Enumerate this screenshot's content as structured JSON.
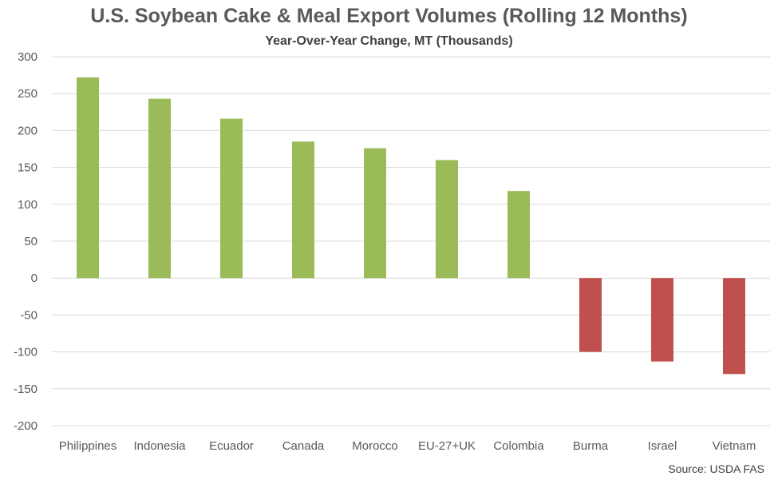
{
  "chart_data": {
    "type": "bar",
    "title": "U.S. Soybean Cake & Meal Export Volumes (Rolling 12 Months)",
    "subtitle": "Year-Over-Year Change, MT (Thousands)",
    "xlabel": "",
    "ylabel": "",
    "categories": [
      "Philippines",
      "Indonesia",
      "Ecuador",
      "Canada",
      "Morocco",
      "EU-27+UK",
      "Colombia",
      "Burma",
      "Israel",
      "Vietnam"
    ],
    "values": [
      272,
      243,
      216,
      185,
      176,
      160,
      118,
      -100,
      -113,
      -130
    ],
    "ylim": [
      -200,
      300
    ],
    "yticks": [
      300,
      250,
      200,
      150,
      100,
      50,
      0,
      -50,
      -100,
      -150,
      -200
    ],
    "grid": true,
    "colors": {
      "positive": "#9BBB59",
      "negative": "#C0504D",
      "grid": "#D9D9D9"
    },
    "source": "Source: USDA FAS"
  }
}
